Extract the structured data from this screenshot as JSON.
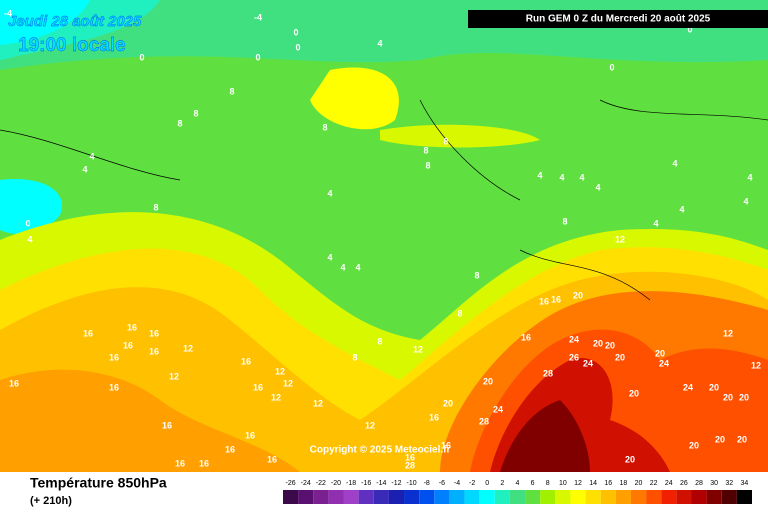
{
  "header": {
    "date": "Jeudi 28 août 2025",
    "time": "19:00 locale",
    "run": "Run GEM 0 Z du Mercredi 20 août 2025",
    "copyright": "Copyright © 2025 Meteociel.fr"
  },
  "footer": {
    "title": "Température 850hPa",
    "lead": "(+ 210h)"
  },
  "map_labels": [
    -4,
    -4,
    0,
    0,
    4,
    0,
    0,
    8,
    8,
    8,
    8,
    8,
    8,
    8,
    4,
    4,
    0,
    4,
    8,
    4,
    4,
    4,
    4,
    8,
    8,
    8,
    8,
    12,
    4,
    4,
    4,
    4,
    4,
    4,
    4,
    4,
    4,
    0,
    0,
    8,
    12,
    16,
    16,
    16,
    16,
    16,
    16,
    12,
    16,
    12,
    12,
    16,
    12,
    12,
    16,
    16,
    12,
    16,
    16,
    16,
    16,
    16,
    16,
    20,
    16,
    16,
    16,
    24,
    20,
    26,
    24,
    20,
    20,
    28,
    20,
    24,
    20,
    16,
    28,
    16,
    16,
    20,
    20,
    24,
    20,
    20,
    20,
    24,
    20,
    20,
    20,
    20,
    28,
    12,
    12,
    12
  ],
  "scale": [
    {
      "value": -26,
      "color": "#3a0a4a"
    },
    {
      "value": -24,
      "color": "#5a1070"
    },
    {
      "value": -22,
      "color": "#7a2090"
    },
    {
      "value": -20,
      "color": "#9030b0"
    },
    {
      "value": -18,
      "color": "#a040c8"
    },
    {
      "value": -16,
      "color": "#6030c0"
    },
    {
      "value": -14,
      "color": "#3a2ab8"
    },
    {
      "value": -12,
      "color": "#1a20b0"
    },
    {
      "value": -10,
      "color": "#0a30d0"
    },
    {
      "value": -8,
      "color": "#0050f0"
    },
    {
      "value": -6,
      "color": "#0080ff"
    },
    {
      "value": -4,
      "color": "#00b0ff"
    },
    {
      "value": -2,
      "color": "#00d8ff"
    },
    {
      "value": 0,
      "color": "#00ffff"
    },
    {
      "value": 2,
      "color": "#20f0c0"
    },
    {
      "value": 4,
      "color": "#40e080"
    },
    {
      "value": 6,
      "color": "#60e040"
    },
    {
      "value": 8,
      "color": "#a0f000"
    },
    {
      "value": 10,
      "color": "#d8f800"
    },
    {
      "value": 12,
      "color": "#ffff00"
    },
    {
      "value": 14,
      "color": "#ffe000"
    },
    {
      "value": 16,
      "color": "#ffc000"
    },
    {
      "value": 18,
      "color": "#ffa000"
    },
    {
      "value": 20,
      "color": "#ff7800"
    },
    {
      "value": 22,
      "color": "#ff5000"
    },
    {
      "value": 24,
      "color": "#f02000"
    },
    {
      "value": 26,
      "color": "#d01000"
    },
    {
      "value": 28,
      "color": "#b00000"
    },
    {
      "value": 30,
      "color": "#800000"
    },
    {
      "value": 32,
      "color": "#500000"
    },
    {
      "value": 34,
      "color": "#000000"
    }
  ]
}
